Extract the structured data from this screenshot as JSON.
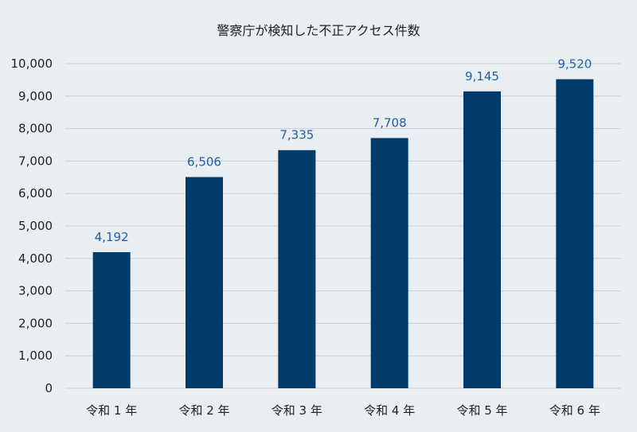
{
  "chart_data": {
    "type": "bar",
    "title": "警察庁が検知した不正アクセス件数",
    "categories": [
      "令和 1 年",
      "令和 2 年",
      "令和 3 年",
      "令和 4 年",
      "令和 5 年",
      "令和 6 年"
    ],
    "values": [
      4192,
      6506,
      7335,
      7708,
      9145,
      9520
    ],
    "data_labels": [
      "4,192",
      "6,506",
      "7,335",
      "7,708",
      "9,145",
      "9,520"
    ],
    "ylim": [
      0,
      10000
    ],
    "yticks": [
      "0",
      "1,000",
      "2,000",
      "3,000",
      "4,000",
      "5,000",
      "6,000",
      "7,000",
      "8,000",
      "9,000",
      "10,000"
    ],
    "xlabel": "",
    "ylabel": "",
    "grid": true,
    "legend": "none",
    "colors": {
      "bar": "#003a6b",
      "data_label": "#1f5fa6",
      "background": "#e9eef3",
      "grid": "#c9cfd6"
    }
  }
}
